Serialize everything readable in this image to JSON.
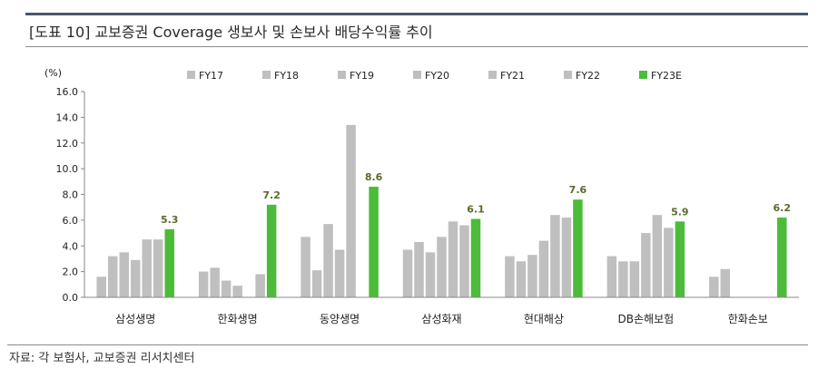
{
  "header": {
    "title": "[도표 10] 교보증권 Coverage 생보사 및 손보사 배당수익률 추이"
  },
  "footer": {
    "source": "자료: 각 보험사, 교보증권 리서치센터"
  },
  "colors": {
    "past": "#bfbfbf",
    "estimate": "#4dbb3a",
    "axis": "#888888"
  },
  "chart_data": {
    "type": "bar",
    "title": "",
    "ylabel": "(%)",
    "xlabel": "",
    "ylim": [
      0,
      16
    ],
    "yticks": [
      "0.0",
      "2.0",
      "4.0",
      "6.0",
      "8.0",
      "10.0",
      "12.0",
      "14.0",
      "16.0"
    ],
    "grid": false,
    "legend_position": "top",
    "categories": [
      "삼성생명",
      "한화생명",
      "동양생명",
      "삼성화재",
      "현대해상",
      "DB손해보험",
      "한화손보"
    ],
    "series": [
      {
        "name": "FY17",
        "values": [
          1.6,
          2.0,
          4.7,
          3.7,
          3.2,
          3.2,
          1.6
        ]
      },
      {
        "name": "FY18",
        "values": [
          3.2,
          2.3,
          2.1,
          4.3,
          2.8,
          2.8,
          2.2
        ]
      },
      {
        "name": "FY19",
        "values": [
          3.5,
          1.3,
          5.7,
          3.5,
          3.3,
          2.8,
          null
        ]
      },
      {
        "name": "FY20",
        "values": [
          2.9,
          0.9,
          3.7,
          4.7,
          4.4,
          5.0,
          null
        ]
      },
      {
        "name": "FY21",
        "values": [
          4.5,
          null,
          13.4,
          5.9,
          6.4,
          6.4,
          null
        ]
      },
      {
        "name": "FY22",
        "values": [
          4.5,
          1.8,
          null,
          5.6,
          6.2,
          5.4,
          null
        ]
      },
      {
        "name": "FY23E",
        "values": [
          5.3,
          7.2,
          8.6,
          6.1,
          7.6,
          5.9,
          6.2
        ]
      }
    ],
    "data_labels": [
      "5.3",
      "7.2",
      "8.6",
      "6.1",
      "7.6",
      "5.9",
      "6.2"
    ]
  }
}
